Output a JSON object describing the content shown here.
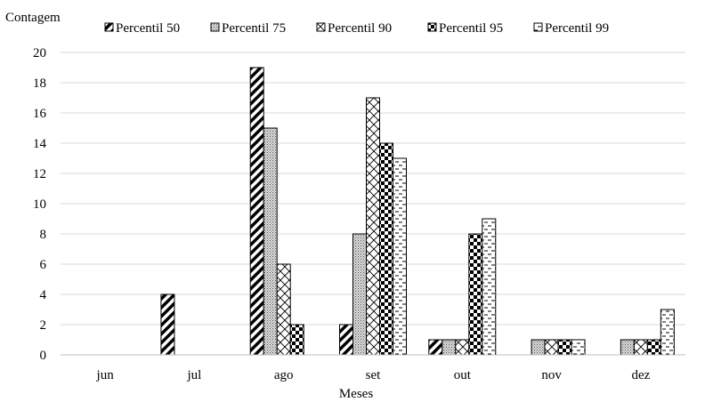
{
  "chart_data": {
    "type": "bar",
    "ylabel": "Contagem",
    "xlabel": "Meses",
    "categories": [
      "jun",
      "jul",
      "ago",
      "set",
      "out",
      "nov",
      "dez"
    ],
    "ylim": [
      0,
      20
    ],
    "yticks": [
      0,
      2,
      4,
      6,
      8,
      10,
      12,
      14,
      16,
      18,
      20
    ],
    "grid": true,
    "legend_position": "top",
    "series": [
      {
        "name": "Percentil 50",
        "pattern": "diagonal-stripes",
        "values": [
          0,
          4,
          19,
          2,
          1,
          0,
          0
        ]
      },
      {
        "name": "Percentil 75",
        "pattern": "dotted",
        "values": [
          0,
          0,
          15,
          8,
          1,
          1,
          1
        ]
      },
      {
        "name": "Percentil 90",
        "pattern": "crosshatch",
        "values": [
          0,
          0,
          6,
          17,
          1,
          1,
          1
        ]
      },
      {
        "name": "Percentil 95",
        "pattern": "checkerboard",
        "values": [
          0,
          0,
          2,
          14,
          8,
          1,
          1
        ]
      },
      {
        "name": "Percentil 99",
        "pattern": "dashes",
        "values": [
          0,
          0,
          0,
          13,
          9,
          1,
          3
        ]
      }
    ]
  }
}
